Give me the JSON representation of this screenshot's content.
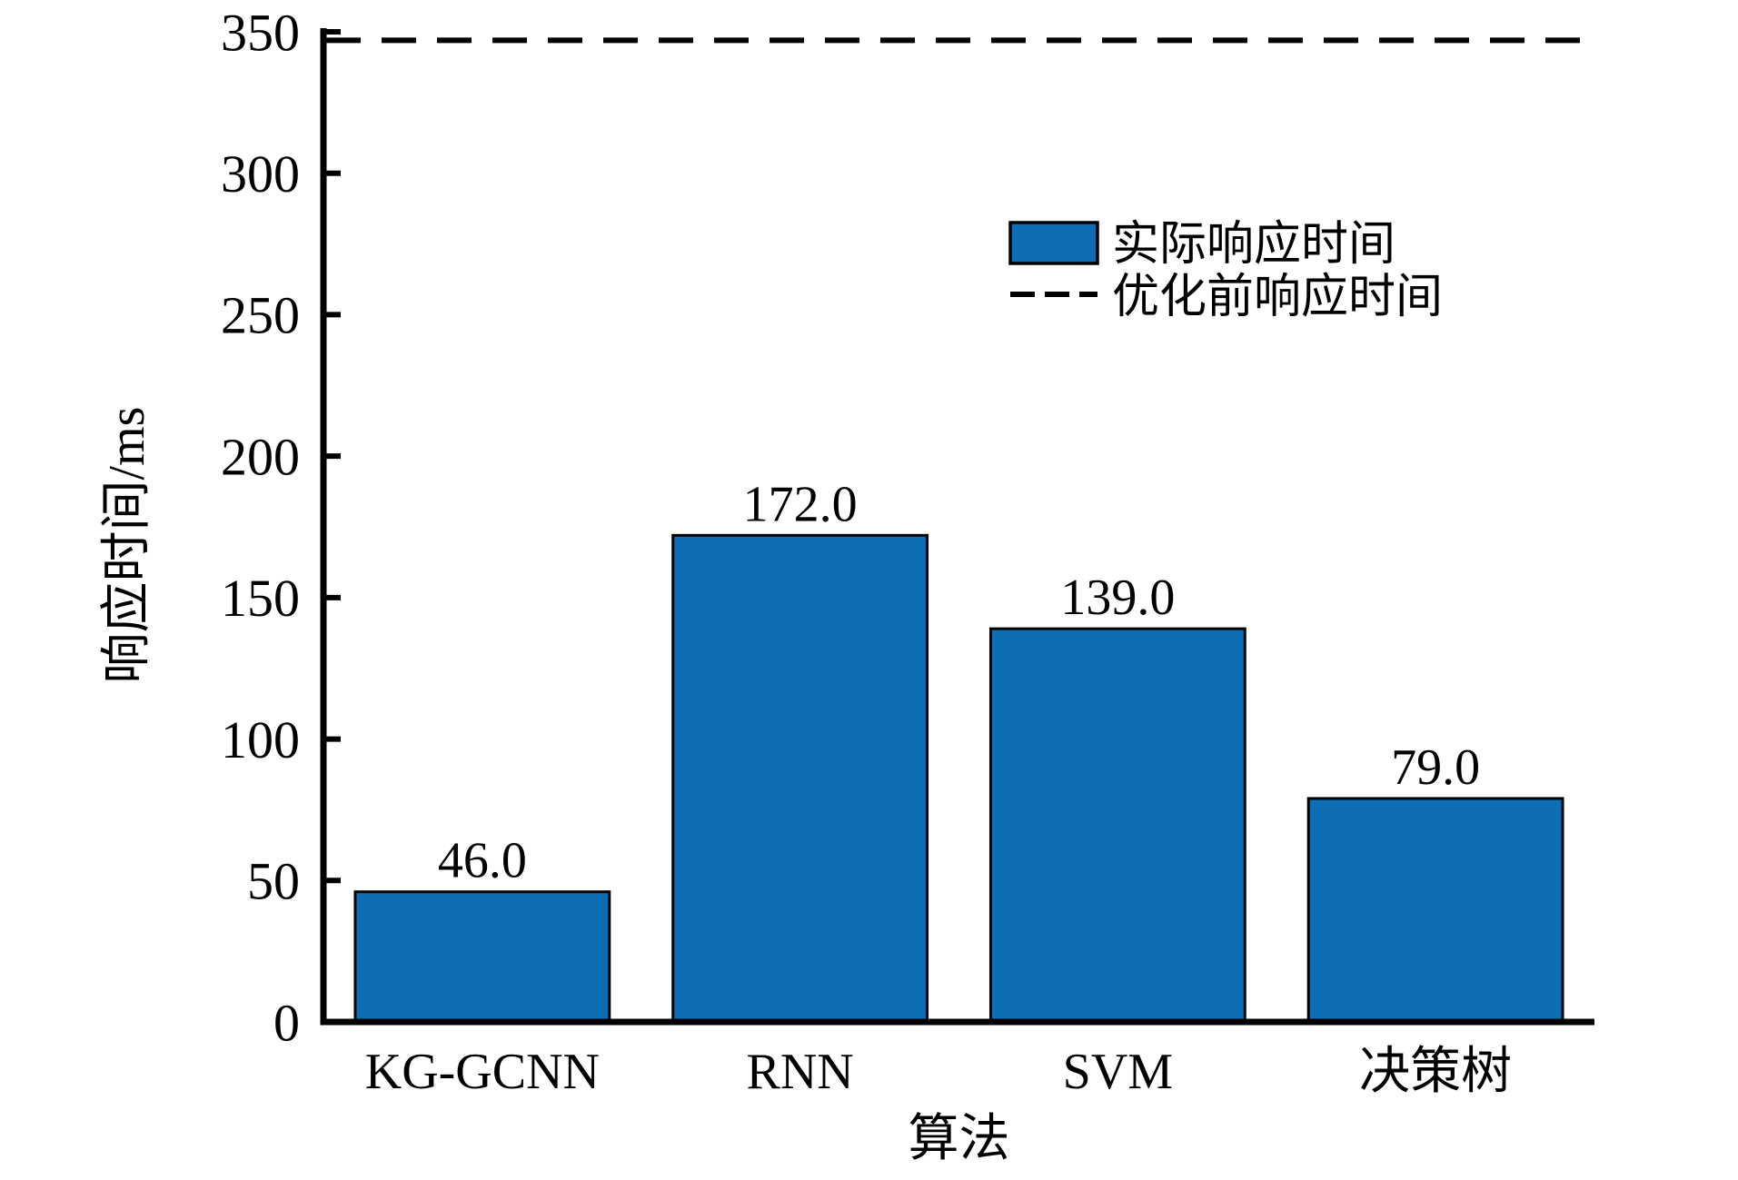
{
  "chart_data": {
    "type": "bar",
    "title": "",
    "categories": [
      "KG-GCNN",
      "RNN",
      "SVM",
      "决策树"
    ],
    "values": [
      46.0,
      172.0,
      139.0,
      79.0
    ],
    "bar_value_labels": [
      "46.0",
      "172.0",
      "139.0",
      "79.0"
    ],
    "xlabel": "算法",
    "ylabel": "响应时间/ms",
    "ylim": [
      0,
      350
    ],
    "yticks": [
      0,
      50,
      100,
      150,
      200,
      250,
      300,
      350
    ],
    "ytick_labels": [
      "0",
      "50",
      "100",
      "150",
      "200",
      "250",
      "300",
      "350"
    ],
    "grid": false,
    "legend_position": "upper-right-inside",
    "series": [
      {
        "name": "实际响应时间",
        "type": "bar",
        "values": [
          46.0,
          172.0,
          139.0,
          79.0
        ]
      },
      {
        "name": "优化前响应时间",
        "type": "dashed-line",
        "value": 347.0
      }
    ]
  },
  "legend": {
    "items": [
      {
        "label": "实际响应时间",
        "swatch": "bar"
      },
      {
        "label": "优化前响应时间",
        "swatch": "dashed-line"
      }
    ]
  },
  "colors": {
    "bar_fill": "#0d6eb4",
    "bar_edge": "#000000",
    "dashed_line": "#000000",
    "axis": "#000000",
    "text": "#000000",
    "background": "#ffffff"
  }
}
